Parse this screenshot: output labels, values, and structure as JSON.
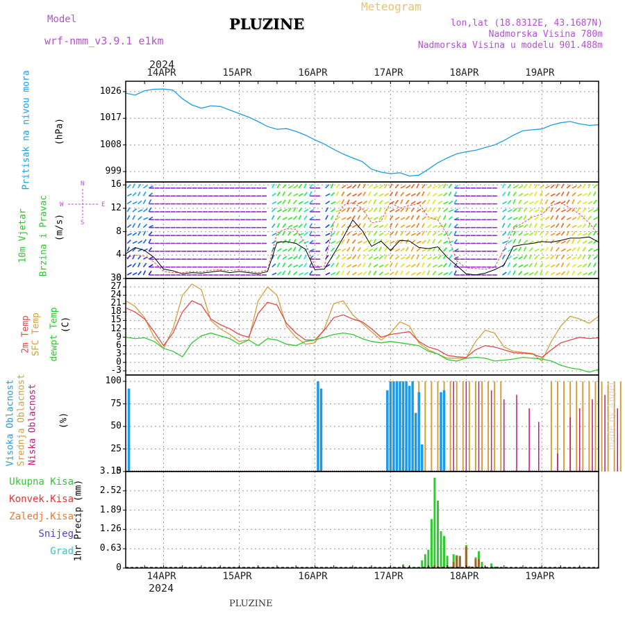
{
  "header": {
    "model_label": "Model",
    "model_name": "wrf-nmm_v3.9.1  e1km",
    "title": "PLUZINE",
    "meteogram": "Meteogram",
    "lonlat": "lon,lat (18.8312E, 43.1687N)",
    "elevation": "Nadmorska Visina 780m",
    "model_elevation": "Nadmorska Visina u modelu 901.488m",
    "year_top": "2024",
    "year_bottom": "2024",
    "footer": "PLUZINE",
    "watermark": "made by Angel"
  },
  "dates": [
    "14APR",
    "15APR",
    "16APR",
    "17APR",
    "18APR",
    "19APR"
  ],
  "colors": {
    "pressure": "#1e9be6",
    "temp2m": "#e64646",
    "sfc": "#d2a03c",
    "dew": "#32c832",
    "high": "#1e9be6",
    "mid": "#d2a03c",
    "low": "#c8147d",
    "rain_total": "#32c832",
    "rain_conv": "#e63232",
    "rain_frz": "#f07828",
    "snow": "#5a3cd2",
    "grad": "#32c8c8",
    "wind_axis": "#b450d2"
  },
  "panels": {
    "pressure": {
      "label": "Pritisak na nivou mora",
      "unit": "(hPa)",
      "ticks": [
        "1026",
        "1017",
        "1008",
        "999"
      ]
    },
    "wind": {
      "label1": "10m Vjetar",
      "label2": "Brzina i Pravac",
      "unit": "(m/s)",
      "ticks": [
        "16",
        "12",
        "8",
        "4",
        "0"
      ],
      "compass_n": "N",
      "compass_s": "S",
      "compass_e": "E",
      "compass_w": "W"
    },
    "temp": {
      "label1": "2m Temp",
      "label2": "SFC Temp",
      "label3": "dewpt Temp",
      "unit": "(C)",
      "ticks": [
        "30",
        "27",
        "24",
        "21",
        "18",
        "15",
        "12",
        "9",
        "6",
        "3",
        "0",
        "-3"
      ]
    },
    "cloud": {
      "label1": "Visoka Oblacnost",
      "label2": "Srednja Oblacnost",
      "label3": "Niska Oblacnost",
      "unit": "(%)",
      "ticks": [
        "100",
        "75",
        "50",
        "25",
        "0"
      ]
    },
    "precip": {
      "unit": "1hr Precip (mm)",
      "ticks": [
        "3.15",
        "2.52",
        "1.89",
        "1.26",
        "0.63",
        "0"
      ],
      "legend": [
        "Ukupna Kisa",
        "Konvek.Kisa",
        "Zaledj.Kisa",
        "Snijeg",
        "Grad"
      ]
    }
  },
  "chart_data": [
    {
      "type": "line",
      "name": "pressure",
      "ylabel": "Pritisak na nivou mora (hPa)",
      "ylim": [
        995.5,
        1029.5
      ],
      "x_unit": "hours since 2024-04-13 12:00 UTC",
      "x": [
        0,
        3,
        6,
        9,
        12,
        15,
        18,
        21,
        24,
        27,
        30,
        33,
        36,
        39,
        42,
        45,
        48,
        51,
        54,
        57,
        60,
        63,
        66,
        69,
        72,
        75,
        78,
        81,
        84,
        87,
        90,
        93,
        96,
        99,
        102,
        105,
        108,
        111,
        114,
        117,
        120,
        123,
        126,
        129,
        132,
        135,
        138,
        141,
        144,
        147,
        150
      ],
      "values": [
        1025.5,
        1024.8,
        1026.3,
        1026.8,
        1026.9,
        1026.5,
        1023.6,
        1021.5,
        1020.4,
        1021.2,
        1021.0,
        1019.8,
        1018.6,
        1017.4,
        1015.9,
        1014.2,
        1013.3,
        1013.5,
        1012.6,
        1011.3,
        1009.7,
        1008.3,
        1006.5,
        1004.9,
        1003.6,
        1002.4,
        999.8,
        998.8,
        998.3,
        998.6,
        997.5,
        997.8,
        999.8,
        1002.0,
        1003.6,
        1005.0,
        1005.7,
        1006.2,
        1007.1,
        1008.0,
        1009.5,
        1011.3,
        1012.8,
        1013.1,
        1013.4,
        1014.7,
        1015.5,
        1015.9,
        1015.1,
        1014.6,
        1014.8
      ]
    },
    {
      "type": "line",
      "name": "wind",
      "ylabel": "10m Vjetar Brzina i Pravac (m/s)",
      "ylim": [
        0,
        16
      ],
      "x": [
        0,
        3,
        6,
        9,
        12,
        15,
        18,
        21,
        24,
        27,
        30,
        33,
        36,
        39,
        42,
        45,
        48,
        51,
        54,
        57,
        60,
        63,
        66,
        69,
        72,
        75,
        78,
        81,
        84,
        87,
        90,
        93,
        96,
        99,
        102,
        105,
        108,
        111,
        114,
        117,
        120,
        123,
        126,
        129,
        132,
        135,
        138,
        141,
        144,
        147,
        150
      ],
      "series": [
        {
          "values": [
            4.2,
            5.3,
            4.8,
            3.6,
            1.6,
            1.3,
            0.8,
            1.0,
            0.9,
            1.1,
            1.3,
            1.0,
            1.2,
            1.0,
            0.8,
            1.2,
            6.2,
            6.3,
            6.0,
            5.0,
            1.5,
            1.6,
            4.2,
            7.0,
            10.0,
            8.2,
            5.5,
            6.4,
            4.8,
            6.5,
            6.4,
            5.3,
            5.1,
            5.4,
            3.6,
            2.2,
            0.8,
            0.6,
            0.9,
            1.5,
            2.3,
            5.5,
            5.8,
            6.0,
            6.3,
            6.2,
            6.5,
            6.9,
            6.9,
            7.1,
            6.2
          ]
        },
        {
          "values": [
            3.5,
            4.0,
            3.8,
            2.8,
            1.2,
            1.0,
            1.0,
            1.2,
            1.1,
            1.4,
            1.5,
            1.3,
            1.5,
            1.2,
            1.0,
            1.5,
            7.8,
            8.5,
            8.4,
            6.0,
            2.2,
            2.0,
            9.5,
            12.5,
            13.0,
            12.0,
            9.5,
            9.8,
            13.0,
            12.0,
            12.5,
            12.8,
            10.5,
            10.0,
            7.5,
            3.0,
            1.8,
            1.7,
            1.6,
            1.9,
            5.0,
            8.5,
            9.5,
            10.5,
            11.0,
            12.5,
            13.0,
            12.0,
            11.0,
            9.5,
            7.4
          ]
        }
      ]
    },
    {
      "type": "line",
      "name": "temperature",
      "ylabel": "(C)",
      "ylim": [
        -4.5,
        30
      ],
      "x": [
        0,
        3,
        6,
        9,
        12,
        15,
        18,
        21,
        24,
        27,
        30,
        33,
        36,
        39,
        42,
        45,
        48,
        51,
        54,
        57,
        60,
        63,
        66,
        69,
        72,
        75,
        78,
        81,
        84,
        87,
        90,
        93,
        96,
        99,
        102,
        105,
        108,
        111,
        114,
        117,
        120,
        123,
        126,
        129,
        132,
        135,
        138,
        141,
        144,
        147,
        150
      ],
      "series": [
        {
          "name": "2m Temp",
          "values": [
            19.5,
            18.0,
            15.5,
            11.0,
            6.0,
            10.5,
            18.0,
            22.0,
            20.5,
            15.5,
            13.5,
            12.0,
            10.0,
            9.0,
            17.5,
            21.5,
            20.5,
            14.0,
            10.5,
            8.0,
            8.0,
            11.5,
            16.0,
            17.0,
            15.5,
            14.5,
            12.0,
            9.0,
            10.0,
            10.5,
            11.0,
            7.5,
            5.5,
            4.5,
            2.5,
            2.0,
            1.8,
            4.5,
            6.0,
            5.5,
            4.5,
            3.5,
            3.3,
            3.0,
            1.8,
            4.5,
            7.0,
            8.0,
            9.0,
            8.5,
            8.8
          ]
        },
        {
          "name": "SFC Temp",
          "values": [
            22.0,
            20.0,
            16.0,
            9.0,
            5.0,
            12.0,
            24.0,
            28.0,
            26.0,
            15.0,
            12.0,
            10.0,
            7.5,
            8.0,
            22.0,
            27.0,
            24.0,
            13.0,
            9.0,
            6.5,
            7.0,
            12.0,
            21.0,
            22.0,
            17.0,
            14.0,
            11.0,
            8.0,
            10.5,
            14.5,
            13.0,
            7.0,
            4.5,
            3.0,
            1.5,
            1.5,
            1.5,
            7.5,
            11.5,
            10.5,
            5.5,
            4.0,
            3.6,
            3.2,
            0.5,
            7.5,
            13.0,
            16.5,
            15.5,
            14.0,
            16.5
          ]
        },
        {
          "name": "dewpt Temp",
          "values": [
            9.0,
            8.5,
            8.8,
            7.5,
            5.0,
            4.0,
            2.0,
            7.0,
            9.5,
            10.5,
            9.5,
            8.5,
            6.5,
            8.0,
            6.0,
            8.5,
            8.0,
            6.5,
            6.0,
            7.5,
            8.0,
            9.0,
            10.0,
            10.5,
            10.0,
            8.5,
            7.5,
            7.0,
            7.5,
            7.0,
            6.5,
            6.0,
            4.0,
            3.0,
            1.0,
            0.5,
            1.5,
            1.8,
            1.5,
            0.5,
            0.8,
            1.2,
            1.8,
            1.5,
            1.2,
            0.5,
            -1.0,
            -2.0,
            -2.5,
            -3.5,
            -2.5
          ]
        }
      ]
    },
    {
      "type": "bar",
      "name": "cloud cover",
      "ylabel": "(%)",
      "ylim": [
        0,
        100
      ],
      "series": [
        {
          "name": "Visoka Oblacnost",
          "x": [
            1,
            61,
            62,
            83,
            84,
            85,
            86,
            87,
            88,
            89,
            90,
            91,
            92,
            93,
            94,
            100,
            101
          ],
          "values": [
            92,
            100,
            92,
            90,
            100,
            100,
            100,
            100,
            100,
            100,
            95,
            100,
            65,
            88,
            30,
            88,
            90
          ]
        },
        {
          "name": "Srednja Oblacnost",
          "x": [
            91,
            93,
            95,
            97,
            99,
            101,
            103,
            105,
            107,
            109,
            111,
            113,
            115,
            117,
            119,
            135,
            137,
            139,
            141,
            143,
            145,
            147,
            149,
            151,
            153,
            155,
            157,
            159,
            161,
            163,
            165,
            170
          ],
          "values": [
            100,
            100,
            100,
            100,
            100,
            100,
            100,
            100,
            100,
            100,
            100,
            100,
            100,
            100,
            100,
            100,
            100,
            100,
            100,
            100,
            100,
            100,
            100,
            100,
            100,
            100,
            100,
            100,
            100,
            100,
            100,
            10
          ]
        },
        {
          "name": "Niska Oblacnost",
          "x": [
            104,
            108,
            112,
            116,
            120,
            124,
            128,
            131,
            137,
            141,
            144,
            148,
            152,
            156,
            159
          ],
          "values": [
            100,
            100,
            100,
            90,
            80,
            85,
            70,
            55,
            20,
            60,
            70,
            80,
            85,
            70,
            90
          ]
        }
      ]
    },
    {
      "type": "bar",
      "name": "precipitation",
      "ylabel": "1hr Precip (mm)",
      "ylim": [
        0,
        3.15
      ],
      "series": [
        {
          "name": "Ukupna Kisa",
          "x": [
            88,
            90,
            92,
            94,
            95,
            96,
            97,
            98,
            99,
            100,
            101,
            102,
            103,
            104,
            105,
            106,
            108,
            109,
            110,
            111,
            112,
            113,
            114,
            116,
            117,
            118
          ],
          "values": [
            0.12,
            0.05,
            0.03,
            0.25,
            0.45,
            0.6,
            1.6,
            2.95,
            2.2,
            1.2,
            1.05,
            0.4,
            0.05,
            0.45,
            0.42,
            0.4,
            0.75,
            0.06,
            0.05,
            0.35,
            0.55,
            0.2,
            0.05,
            0.15,
            0.05,
            0.05
          ]
        },
        {
          "name": "Konvek.Kisa",
          "x": [
            88,
            98,
            99,
            101,
            104,
            105,
            106,
            108,
            109,
            111,
            112
          ],
          "values": [
            0.08,
            0.1,
            0.06,
            0.05,
            0.2,
            0.4,
            0.38,
            0.7,
            0.06,
            0.3,
            0.3
          ]
        }
      ]
    }
  ]
}
